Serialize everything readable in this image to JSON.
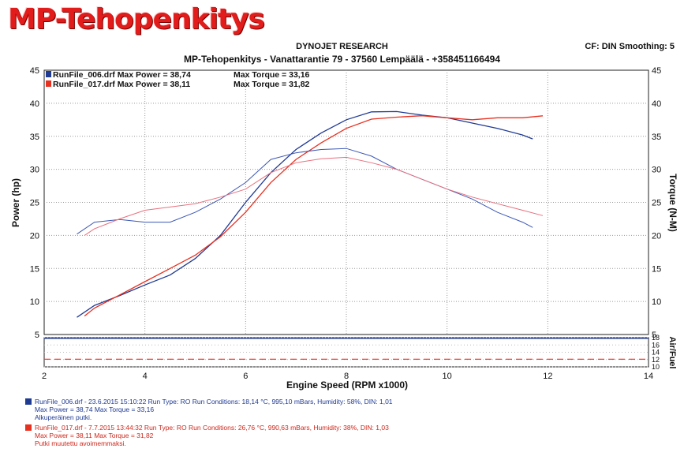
{
  "header": {
    "logo_text": "MP-Tehopenkitys",
    "line1": "DYNOJET RESEARCH",
    "line2": "MP-Tehopenkitys - Vanattarantie 79 - 37560 Lempäälä - +358451166494",
    "cf_text": "CF: DIN  Smoothing: 5"
  },
  "chart_data": [
    {
      "type": "line",
      "xlabel": "Engine Speed (RPM x1000)",
      "ylabel_left": "Power (hp)",
      "ylabel_right": "Torque (N-M)",
      "xlim": [
        2,
        14
      ],
      "ylim_left": [
        5,
        45
      ],
      "ylim_right": [
        5,
        45
      ],
      "x_ticks": [
        2,
        4,
        6,
        8,
        10,
        12,
        14
      ],
      "y_ticks_left": [
        5,
        10,
        15,
        20,
        25,
        30,
        35,
        40,
        45
      ],
      "y_ticks_right": [
        5,
        10,
        15,
        20,
        25,
        30,
        35,
        40,
        45
      ],
      "grid": true,
      "legend_position": "top-left",
      "legend": [
        {
          "text": "RunFile_006.drf Max Power = 38,74",
          "text2": "Max Torque = 33,16",
          "color": "#1f3a93"
        },
        {
          "text": "RunFile_017.drf Max Power = 38,11",
          "text2": "Max Torque = 31,82",
          "color": "#e8301f"
        }
      ],
      "series": [
        {
          "kind": "power",
          "color": "#1f3a93",
          "x": [
            2.65,
            3.0,
            3.5,
            4.0,
            4.5,
            5.0,
            5.5,
            6.0,
            6.5,
            7.0,
            7.5,
            8.0,
            8.5,
            9.0,
            9.5,
            10.0,
            10.5,
            11.0,
            11.5,
            11.7
          ],
          "y": [
            7.6,
            9.4,
            10.9,
            12.5,
            14.0,
            16.5,
            20.0,
            25.0,
            29.5,
            33.0,
            35.5,
            37.5,
            38.7,
            38.74,
            38.2,
            37.8,
            37.0,
            36.2,
            35.2,
            34.6
          ]
        },
        {
          "kind": "power",
          "color": "#e8301f",
          "x": [
            2.8,
            3.0,
            3.5,
            4.0,
            4.5,
            5.0,
            5.5,
            6.0,
            6.5,
            7.0,
            7.5,
            8.0,
            8.5,
            9.0,
            9.5,
            10.0,
            10.5,
            11.0,
            11.5,
            11.9
          ],
          "y": [
            7.8,
            9.0,
            11.0,
            13.0,
            15.0,
            17.0,
            19.8,
            23.5,
            28.0,
            31.5,
            34.0,
            36.2,
            37.6,
            37.9,
            38.11,
            37.8,
            37.5,
            37.8,
            37.8,
            38.1
          ]
        },
        {
          "kind": "torque",
          "color": "#3b57b5",
          "x": [
            2.65,
            3.0,
            3.5,
            4.0,
            4.5,
            5.0,
            5.5,
            6.0,
            6.5,
            7.0,
            7.5,
            8.0,
            8.5,
            9.0,
            9.5,
            10.0,
            10.5,
            11.0,
            11.5,
            11.7
          ],
          "y": [
            20.2,
            22.0,
            22.4,
            22.0,
            22.0,
            23.5,
            25.5,
            28.0,
            31.5,
            32.5,
            33.0,
            33.16,
            32.0,
            30.0,
            28.5,
            27.0,
            25.5,
            23.5,
            22.0,
            21.2
          ]
        },
        {
          "kind": "torque",
          "color": "#e8707d",
          "x": [
            2.8,
            3.0,
            3.5,
            4.0,
            4.5,
            5.0,
            5.5,
            6.0,
            6.5,
            7.0,
            7.5,
            8.0,
            8.5,
            9.0,
            9.5,
            10.0,
            10.5,
            11.0,
            11.5,
            11.9
          ],
          "y": [
            20.0,
            21.0,
            22.5,
            23.8,
            24.3,
            24.8,
            25.8,
            27.0,
            29.5,
            31.0,
            31.6,
            31.82,
            31.0,
            30.0,
            28.5,
            27.0,
            25.8,
            24.8,
            23.8,
            23.0
          ]
        }
      ]
    },
    {
      "type": "line",
      "ylabel_right": "Air/Fuel",
      "xlim": [
        2,
        14
      ],
      "ylim_right": [
        10,
        18
      ],
      "y_ticks_right": [
        10,
        12,
        14,
        16,
        18
      ],
      "series": [
        {
          "color": "#1f3a93",
          "x": [
            2,
            14
          ],
          "y": [
            17.8,
            17.8
          ]
        },
        {
          "color": "#e8301f",
          "x": [
            2,
            14
          ],
          "y": [
            12.1,
            12.1
          ]
        }
      ]
    }
  ],
  "footer": [
    {
      "color": "#1f3a93",
      "line1": "RunFile_006.drf - 23.6.2015 15:10:22  Run Type: RO  Run Conditions: 18,14 °C, 995,10 mBars,  Humidity:  58%, DIN: 1,01",
      "line2": "Max Power = 38,74  Max Torque = 33,16",
      "line3": "Alkuperäinen putki."
    },
    {
      "color": "#e8301f",
      "line1": "RunFile_017.drf - 7.7.2015 13:44:32  Run Type: RO  Run Conditions: 26,76 °C, 990,63 mBars,  Humidity:  38%, DIN: 1,03",
      "line2": "Max Power = 38,11  Max Torque = 31,82",
      "line3": "Putki muutettu avoimemmaksi."
    }
  ]
}
